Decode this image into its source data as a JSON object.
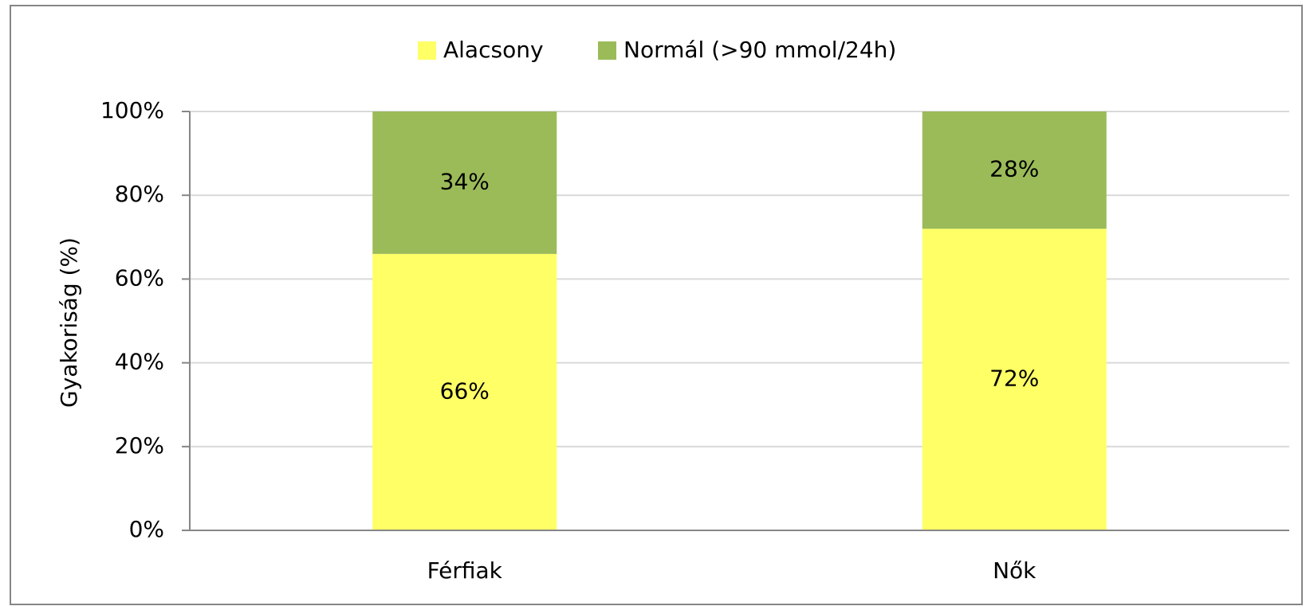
{
  "chart_data": {
    "type": "stacked_bar",
    "categories": [
      "Férfiak",
      "Nők"
    ],
    "series": [
      {
        "name": "Alacsony",
        "color": "#ffff66",
        "values": [
          66,
          72
        ],
        "value_labels": [
          "66%",
          "72%"
        ]
      },
      {
        "name": "Normál (>90 mmol/24h)",
        "color": "#9bbb59",
        "values": [
          34,
          28
        ],
        "value_labels": [
          "34%",
          "28%"
        ]
      }
    ],
    "y_label": "Gyakoriság (%)",
    "ylim": [
      0,
      100
    ],
    "yticks": [
      {
        "value": 0,
        "label": "0%"
      },
      {
        "value": 20,
        "label": "20%"
      },
      {
        "value": 40,
        "label": "40%"
      },
      {
        "value": 60,
        "label": "60%"
      },
      {
        "value": 80,
        "label": "80%"
      },
      {
        "value": 100,
        "label": "100%"
      }
    ],
    "grid": true,
    "legend": "top"
  }
}
